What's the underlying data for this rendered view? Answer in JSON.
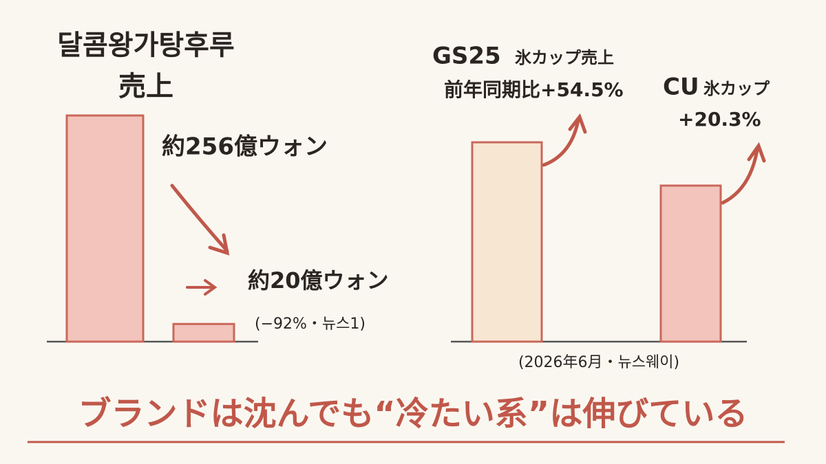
{
  "chart_data": {
    "type": "bar",
    "title": [
      "달콤왕가탕후루",
      "売上"
    ],
    "categories": [
      null,
      null
    ],
    "values": [
      256,
      20
    ],
    "value_labels": [
      "約256億ウォン",
      "約20億ウォン"
    ],
    "note": "(−92%・뉴스1)",
    "color": "#f2c4bb"
  },
  "comparison": {
    "items": [
      {
        "brand": "GS25",
        "label": "氷カップ売上",
        "change": "前年同期比+54.5%"
      },
      {
        "brand": "CU",
        "label": "氷カップ",
        "change": "+20.3%"
      }
    ],
    "source": "(2026年6月・뉴스웨이)"
  },
  "headline": "ブランドは沈んでも“冷たい系”は伸びている"
}
